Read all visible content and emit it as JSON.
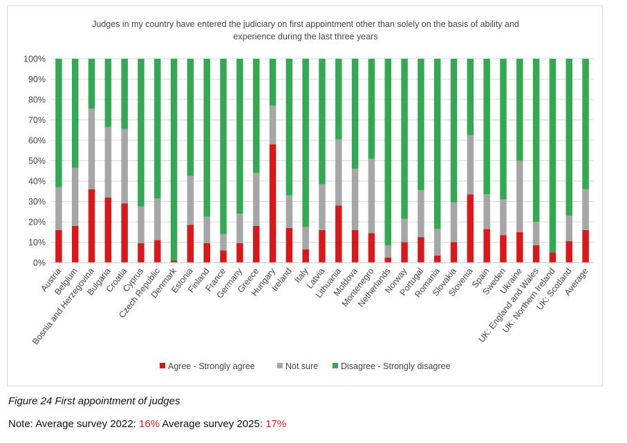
{
  "chart_data": {
    "type": "bar",
    "stacked": true,
    "title": "Judges in my country have entered the judiciary on first appointment other than solely on the basis of ability and experience during the last three years",
    "title_lines": [
      "Judges in my country have entered the judiciary on first appointment other than solely on the basis of ability and",
      "experience during the last three years"
    ],
    "ylim": [
      0,
      100
    ],
    "yticks": [
      "0%",
      "10%",
      "20%",
      "30%",
      "40%",
      "50%",
      "60%",
      "70%",
      "80%",
      "90%",
      "100%"
    ],
    "categories": [
      "Austria",
      "Belgium",
      "Bosnia and Herzegovina",
      "Bulgaria",
      "Croatia",
      "Cyprus",
      "Czech Republic",
      "Denmark",
      "Estonia",
      "Finland",
      "France",
      "Germany",
      "Greece",
      "Hungary",
      "Ireland",
      "Italy",
      "Latvia",
      "Lithuania",
      "Moldova",
      "Montenegro",
      "Netherlands",
      "Norway",
      "Portugal",
      "Romania",
      "Slovakia",
      "Slovenia",
      "Spain",
      "Sweden",
      "Ukraine",
      "UK: England and Wales",
      "UK: Northern Ireland",
      "UK: Scotland",
      "Average"
    ],
    "series": [
      {
        "name": "Agree - Strongly agree",
        "color": "#d7191c",
        "values": [
          16,
          18,
          36,
          32,
          29,
          9.5,
          11,
          1,
          18.5,
          9.5,
          6,
          9.5,
          18,
          58,
          17,
          6.5,
          16,
          28,
          16,
          14.5,
          2.5,
          10,
          12.5,
          3.5,
          10,
          33.5,
          16.5,
          13.5,
          15,
          8.5,
          5,
          10.5,
          16
        ]
      },
      {
        "name": "Not sure",
        "color": "#a6a6a6",
        "values": [
          21,
          28.5,
          39.5,
          34.5,
          36.5,
          18,
          20.5,
          0,
          24,
          13,
          8,
          14.5,
          26,
          19,
          16,
          11,
          22.5,
          32.5,
          30,
          36.5,
          6,
          11.5,
          23,
          13,
          19.5,
          29,
          17,
          17.5,
          35,
          11.5,
          0,
          12.5,
          20
        ]
      },
      {
        "name": "Disagree - Strongly disagree",
        "color": "#35a853",
        "values": [
          63,
          53.5,
          24.5,
          33.5,
          34.5,
          72.5,
          68.5,
          99,
          57.5,
          77.5,
          86,
          76,
          56,
          23,
          67,
          82.5,
          61.5,
          39.5,
          54,
          49,
          91.5,
          78.5,
          64.5,
          83.5,
          70.5,
          37.5,
          66.5,
          69,
          50,
          80,
          95,
          77,
          64
        ]
      }
    ],
    "legend_position": "bottom",
    "grid": true
  },
  "caption": "Figure 24  First appointment of judges",
  "note": {
    "prefix": "Note: Average survey 2022: ",
    "v2022": "16%",
    "middle": " Average survey 2025: ",
    "v2025": "17%"
  }
}
